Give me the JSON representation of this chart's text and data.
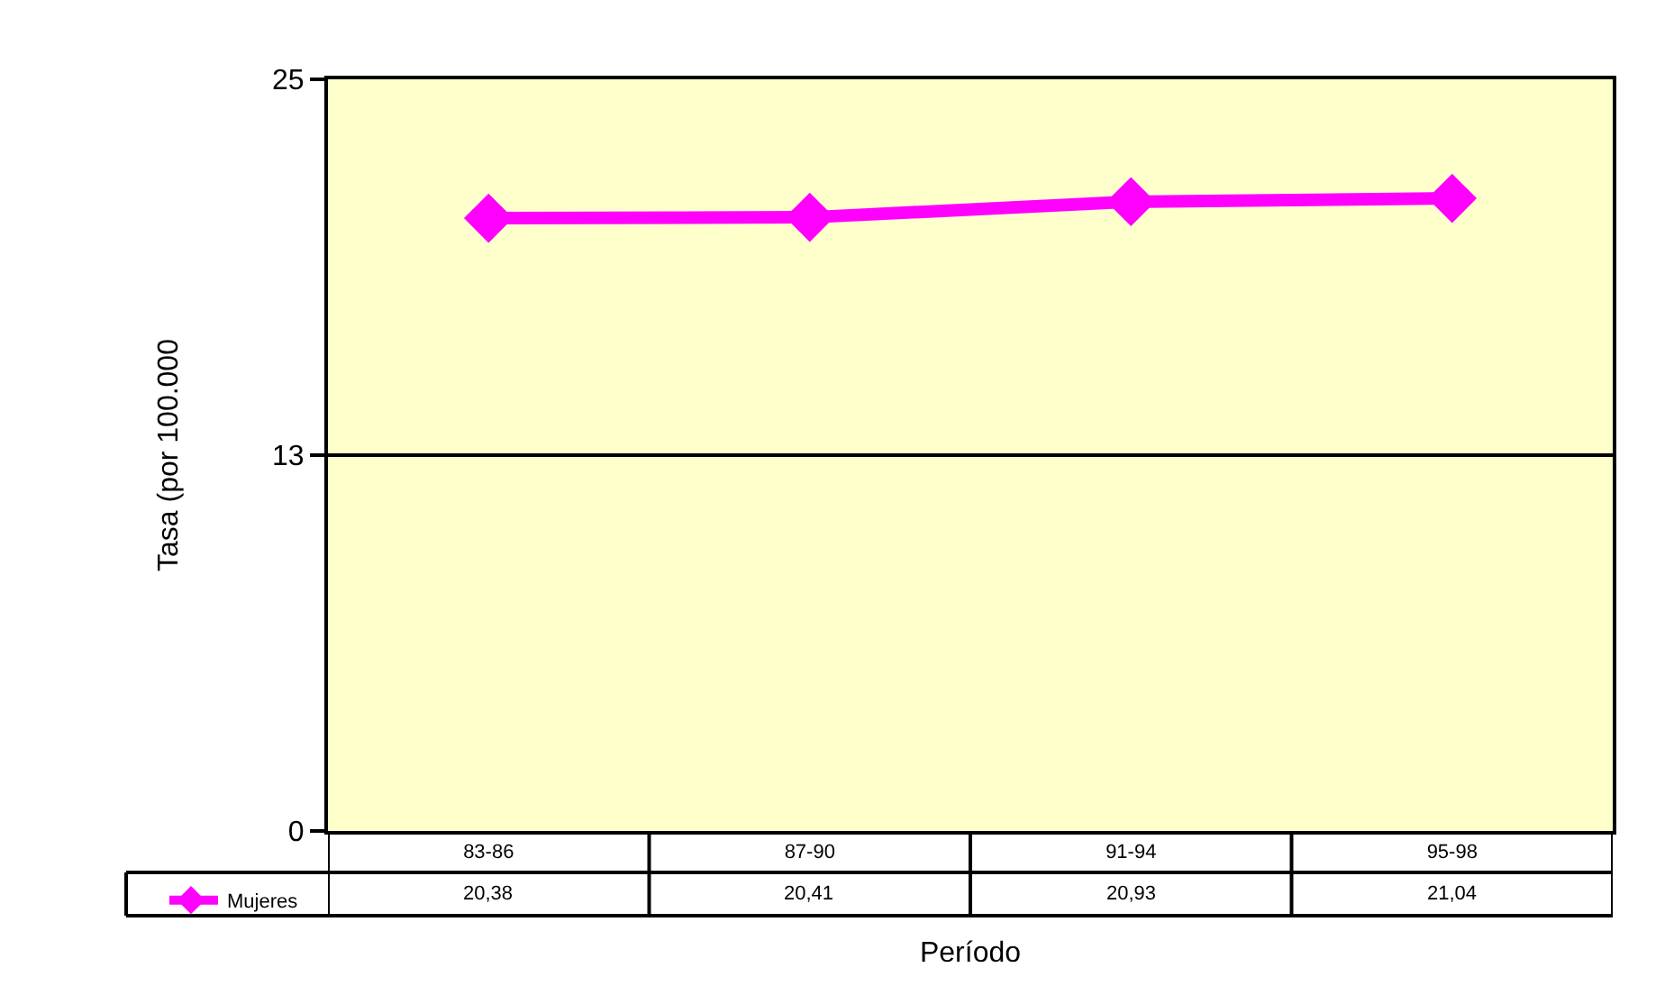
{
  "chart_data": {
    "type": "line",
    "xlabel": "Período",
    "ylabel": "Tasa (por 100.000",
    "categories": [
      "83-86",
      "87-90",
      "91-94",
      "95-98"
    ],
    "series": [
      {
        "name": "Mujeres",
        "color": "#ff00ff",
        "values": [
          20.38,
          20.41,
          20.93,
          21.04
        ],
        "value_labels": [
          "20,38",
          "20,41",
          "20,93",
          "21,04"
        ]
      }
    ],
    "ylim": [
      0,
      25
    ],
    "yticks": [
      0,
      {
        "value": 12.5,
        "label": "13"
      },
      25
    ],
    "grid": "y",
    "legend": "bottom left",
    "marker": "diamond",
    "line_style": "solid"
  }
}
